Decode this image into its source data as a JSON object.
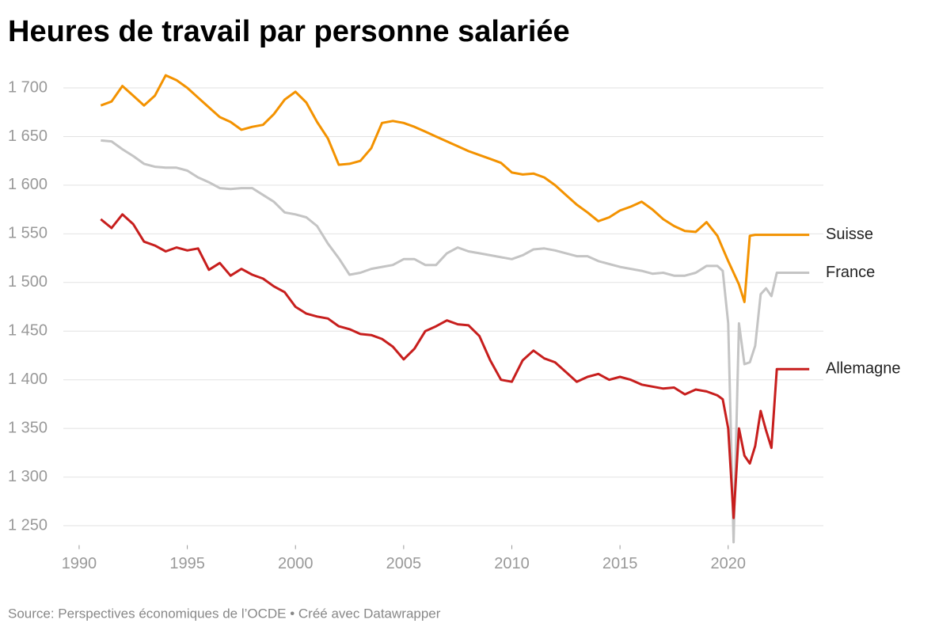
{
  "chart_data": {
    "type": "line",
    "title": "Heures de travail par personne salariée",
    "source": "Source: Perspectives économiques de l’OCDE • Créé avec Datawrapper",
    "x": [
      1991,
      1991.5,
      1992,
      1992.5,
      1993,
      1993.5,
      1994,
      1994.5,
      1995,
      1995.5,
      1996,
      1996.5,
      1997,
      1997.5,
      1998,
      1998.5,
      1999,
      1999.5,
      2000,
      2000.5,
      2001,
      2001.5,
      2002,
      2002.5,
      2003,
      2003.5,
      2004,
      2004.5,
      2005,
      2005.5,
      2006,
      2006.5,
      2007,
      2007.5,
      2008,
      2008.5,
      2009,
      2009.5,
      2010,
      2010.5,
      2011,
      2011.5,
      2012,
      2012.5,
      2013,
      2013.5,
      2014,
      2014.5,
      2015,
      2015.5,
      2016,
      2016.5,
      2017,
      2017.5,
      2018,
      2018.5,
      2019,
      2019.5,
      2019.75,
      2020,
      2020.25,
      2020.5,
      2020.75,
      2021,
      2021.25,
      2021.5,
      2021.75,
      2022,
      2022.25,
      2023.75
    ],
    "series": [
      {
        "name": "Suisse",
        "color": "#f39200",
        "values": [
          1682,
          1686,
          1702,
          1692,
          1682,
          1692,
          1713,
          1708,
          1700,
          1690,
          1680,
          1670,
          1665,
          1657,
          1660,
          1662,
          1673,
          1688,
          1696,
          1685,
          1665,
          1648,
          1621,
          1622,
          1625,
          1638,
          1664,
          1666,
          1664,
          1660,
          1655,
          1650,
          1645,
          1640,
          1635,
          1631,
          1627,
          1623,
          1613,
          1611,
          1612,
          1608,
          1600,
          1590,
          1580,
          1572,
          1563,
          1567,
          1574,
          1578,
          1583,
          1575,
          1565,
          1558,
          1553,
          1552,
          1562,
          1548,
          1535,
          1522,
          1510,
          1498,
          1480,
          1548,
          1549,
          1549,
          1549,
          1549,
          1549,
          1549
        ]
      },
      {
        "name": "France",
        "color": "#c4c4c4",
        "values": [
          1646,
          1645,
          1637,
          1630,
          1622,
          1619,
          1618,
          1618,
          1615,
          1608,
          1603,
          1597,
          1596,
          1597,
          1597,
          1590,
          1583,
          1572,
          1570,
          1567,
          1558,
          1540,
          1525,
          1508,
          1510,
          1514,
          1516,
          1518,
          1524,
          1524,
          1518,
          1518,
          1530,
          1536,
          1532,
          1530,
          1528,
          1526,
          1524,
          1528,
          1534,
          1535,
          1533,
          1530,
          1527,
          1527,
          1522,
          1519,
          1516,
          1514,
          1512,
          1509,
          1510,
          1507,
          1507,
          1510,
          1517,
          1517,
          1512,
          1458,
          1233,
          1458,
          1416,
          1418,
          1435,
          1488,
          1494,
          1486,
          1510,
          1510
        ]
      },
      {
        "name": "Allemagne",
        "color": "#c71e1d",
        "values": [
          1565,
          1556,
          1570,
          1560,
          1542,
          1538,
          1532,
          1536,
          1533,
          1535,
          1513,
          1520,
          1507,
          1514,
          1508,
          1504,
          1496,
          1490,
          1475,
          1468,
          1465,
          1463,
          1455,
          1452,
          1447,
          1446,
          1442,
          1434,
          1421,
          1432,
          1450,
          1455,
          1461,
          1457,
          1456,
          1445,
          1420,
          1400,
          1398,
          1420,
          1430,
          1422,
          1418,
          1408,
          1398,
          1403,
          1406,
          1400,
          1403,
          1400,
          1395,
          1393,
          1391,
          1392,
          1385,
          1390,
          1388,
          1384,
          1380,
          1350,
          1258,
          1350,
          1322,
          1314,
          1332,
          1368,
          1348,
          1330,
          1411,
          1411
        ]
      }
    ],
    "xlim": [
      1989.27,
      2024.4
    ],
    "xticks": [
      1990,
      1995,
      2000,
      2005,
      2010,
      2015,
      2020
    ],
    "ylim": [
      1230,
      1715
    ],
    "yticks": [
      {
        "value": 1250,
        "label": "1 250"
      },
      {
        "value": 1300,
        "label": "1 300"
      },
      {
        "value": 1350,
        "label": "1 350"
      },
      {
        "value": 1400,
        "label": "1 400"
      },
      {
        "value": 1450,
        "label": "1 450"
      },
      {
        "value": 1500,
        "label": "1 500"
      },
      {
        "value": 1550,
        "label": "1 550"
      },
      {
        "value": 1600,
        "label": "1 600"
      },
      {
        "value": 1650,
        "label": "1 650"
      },
      {
        "value": 1700,
        "label": "1 700"
      }
    ],
    "grid": true
  }
}
